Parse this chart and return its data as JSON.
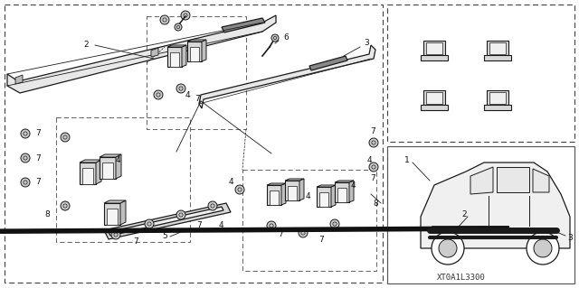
{
  "part_code": "XT0A1L3300",
  "bg_color": "#ffffff",
  "lc": "#1a1a1a",
  "figsize": [
    6.4,
    3.19
  ],
  "dpi": 100,
  "board_fc": "#e0e0e0",
  "bracket_fc": "#d8d8d8",
  "pad_fc": "#aaaaaa",
  "bolt_fc": "#cccccc"
}
